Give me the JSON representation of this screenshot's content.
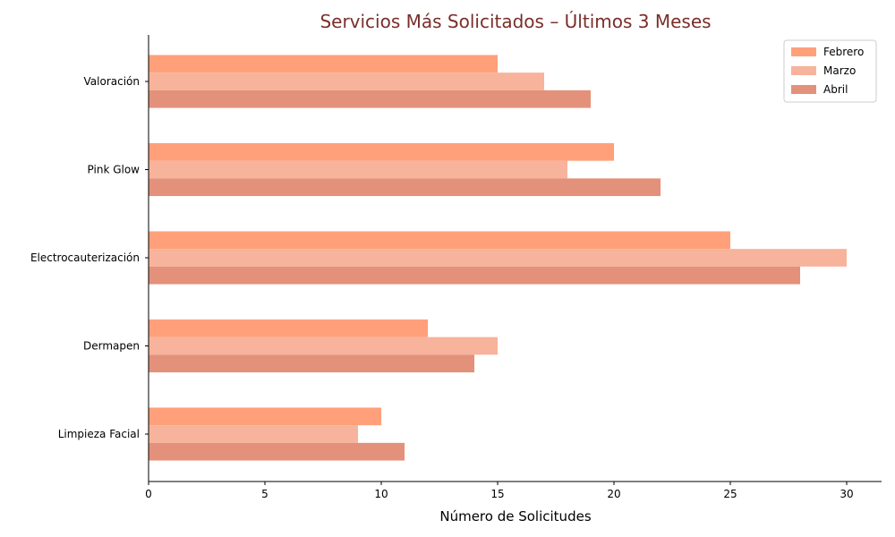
{
  "chart_data": {
    "type": "bar",
    "orientation": "horizontal",
    "title": "Servicios Más Solicitados – Últimos 3 Meses",
    "title_color": "#7a2e2a",
    "xlabel": "Número de Solicitudes",
    "ylabel": "",
    "xlim": [
      0,
      31.5
    ],
    "x_ticks": [
      0,
      5,
      10,
      15,
      20,
      25,
      30
    ],
    "categories": [
      "Limpieza Facial",
      "Dermapen",
      "Electrocauterización",
      "Pink Glow",
      "Valoración"
    ],
    "series": [
      {
        "name": "Febrero",
        "color": "#ffa07a",
        "values": [
          10,
          12,
          25,
          20,
          15
        ]
      },
      {
        "name": "Marzo",
        "color": "#f7b39b",
        "values": [
          9,
          15,
          30,
          18,
          17
        ]
      },
      {
        "name": "Abril",
        "color": "#e3917a",
        "values": [
          11,
          14,
          28,
          22,
          19
        ]
      }
    ],
    "legend_position": "top-right",
    "grid": false
  }
}
